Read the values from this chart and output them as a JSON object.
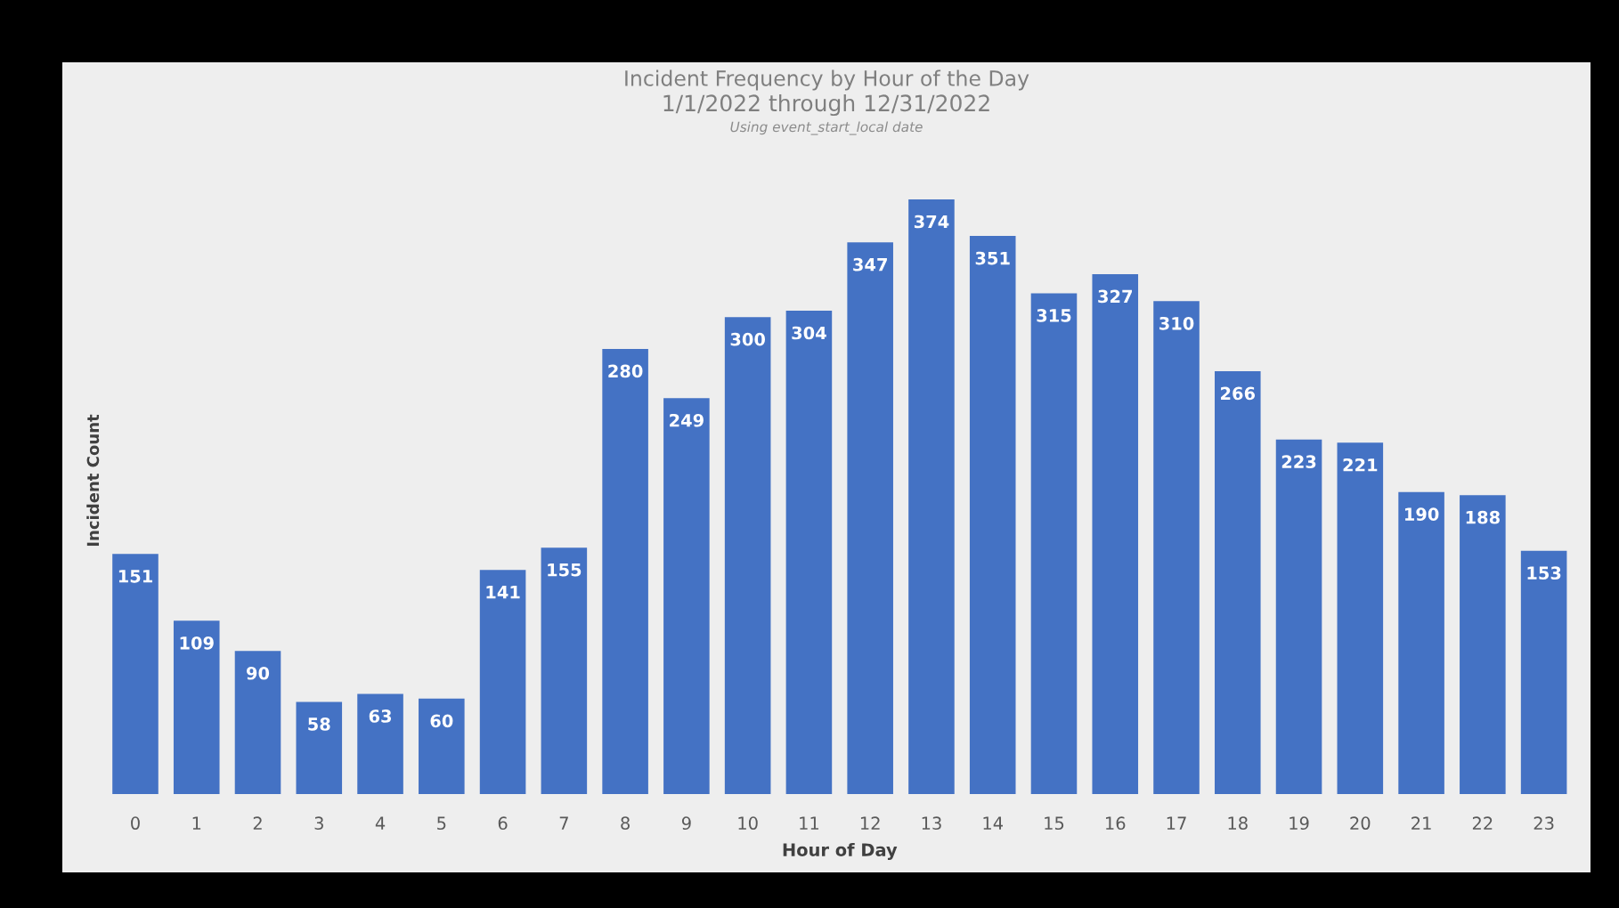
{
  "chart_data": {
    "type": "bar",
    "title": "Incident Frequency by Hour of the Day",
    "subtitle": "1/1/2022 through 12/31/2022",
    "annotations": [
      "Using event_start_local date"
    ],
    "xlabel": "Hour of Day",
    "ylabel": "Incident Count",
    "categories": [
      "0",
      "1",
      "2",
      "3",
      "4",
      "5",
      "6",
      "7",
      "8",
      "9",
      "10",
      "11",
      "12",
      "13",
      "14",
      "15",
      "16",
      "17",
      "18",
      "19",
      "20",
      "21",
      "22",
      "23"
    ],
    "values": [
      151,
      109,
      90,
      58,
      63,
      60,
      141,
      155,
      280,
      249,
      300,
      304,
      347,
      374,
      351,
      315,
      327,
      310,
      266,
      223,
      221,
      190,
      188,
      153
    ],
    "color": "#4472c4",
    "data_labels": true
  }
}
